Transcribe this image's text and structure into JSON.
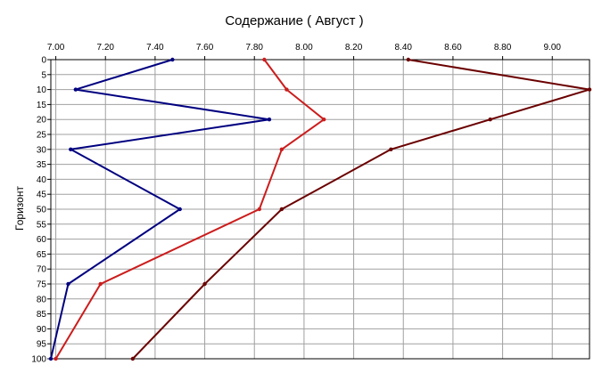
{
  "chart_data": {
    "type": "line",
    "title": "Содержание    ( Август )",
    "xlabel": "",
    "ylabel": "Горизонт",
    "x_axis_position": "top",
    "y_axis_inverted": true,
    "xlim": [
      6.98,
      9.15
    ],
    "ylim": [
      0,
      100
    ],
    "x_ticks": [
      7.0,
      7.2,
      7.4,
      7.6,
      7.8,
      8.0,
      8.2,
      8.4,
      8.6,
      8.8,
      9.0
    ],
    "x_tick_labels": [
      "7.00",
      "7.20",
      "7.40",
      "7.60",
      "7.80",
      "8.00",
      "8.20",
      "8.40",
      "8.60",
      "8.80",
      "9.00"
    ],
    "y_ticks": [
      0,
      5,
      10,
      15,
      20,
      25,
      30,
      35,
      40,
      45,
      50,
      55,
      60,
      65,
      70,
      75,
      80,
      85,
      90,
      95,
      100
    ],
    "y_tick_labels": [
      "0",
      "5",
      "10",
      "15",
      "20",
      "25",
      "30",
      "35",
      "40",
      "45",
      "50",
      "55",
      "60",
      "65",
      "70",
      "75",
      "80",
      "85",
      "90",
      "95",
      "100"
    ],
    "grid": true,
    "series": [
      {
        "color": "#000080",
        "points": [
          [
            7.47,
            0
          ],
          [
            7.08,
            10
          ],
          [
            7.86,
            20
          ],
          [
            7.06,
            30
          ],
          [
            7.5,
            50
          ],
          [
            7.05,
            75
          ],
          [
            6.98,
            100
          ]
        ]
      },
      {
        "color": "#cc1c1c",
        "points": [
          [
            7.84,
            0
          ],
          [
            7.93,
            10
          ],
          [
            8.08,
            20
          ],
          [
            7.91,
            30
          ],
          [
            7.82,
            50
          ],
          [
            7.18,
            75
          ],
          [
            7.0,
            100
          ]
        ]
      },
      {
        "color": "#6b0000",
        "points": [
          [
            8.42,
            0
          ],
          [
            9.15,
            10
          ],
          [
            8.75,
            20
          ],
          [
            8.35,
            30
          ],
          [
            7.91,
            50
          ],
          [
            7.6,
            75
          ],
          [
            7.31,
            100
          ]
        ]
      }
    ]
  }
}
